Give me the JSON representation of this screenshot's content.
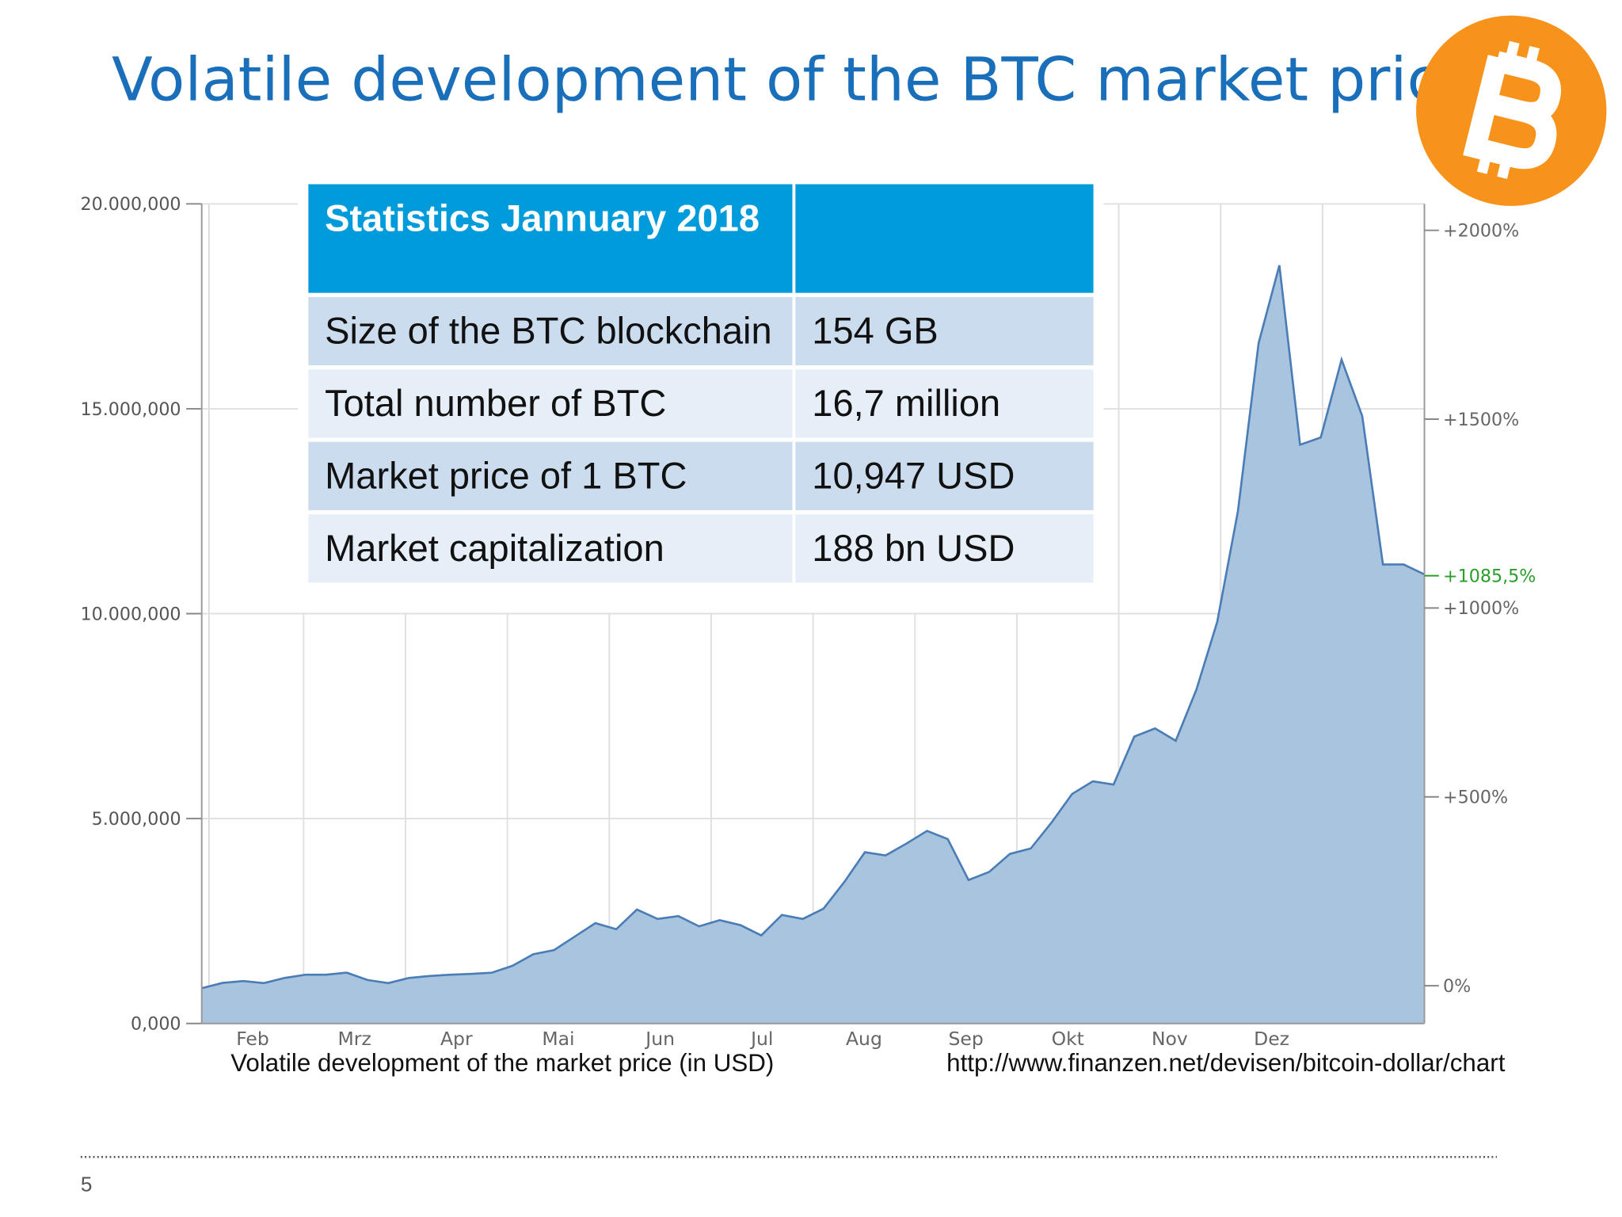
{
  "chart_data": {
    "type": "area",
    "title": "Volatile development of the BTC market price",
    "color": "#4a7db5",
    "fill": "#a9c4df",
    "grid": true,
    "x_labels": [
      "Feb",
      "Mrz",
      "Apr",
      "Mai",
      "Jun",
      "Jul",
      "Aug",
      "Sep",
      "Okt",
      "Nov",
      "Dez"
    ],
    "series": [
      {
        "color": "#4a7db5",
        "values": [
          860,
          990,
          1035,
          985,
          1110,
          1190,
          1190,
          1240,
          1060,
          985,
          1110,
          1160,
          1190,
          1210,
          1240,
          1410,
          1690,
          1790,
          2120,
          2450,
          2300,
          2780,
          2550,
          2620,
          2370,
          2520,
          2400,
          2150,
          2650,
          2550,
          2800,
          3450,
          4180,
          4100,
          4390,
          4700,
          4500,
          3500,
          3700,
          4140,
          4270,
          4900,
          5600,
          5910,
          5830,
          7000,
          7200,
          6900,
          8150,
          9800,
          12500,
          16600,
          18500,
          14120,
          14300,
          16200,
          14820,
          11200,
          11200,
          10960
        ]
      }
    ],
    "ylim": [
      0,
      20000
    ],
    "yticks": [
      {
        "value": 0,
        "label": "0,000"
      },
      {
        "value": 5000,
        "label": "5.000,000"
      },
      {
        "value": 10000,
        "label": "10.000,000"
      },
      {
        "value": 15000,
        "label": "15.000,000"
      },
      {
        "value": 20000,
        "label": "20.000,000"
      }
    ],
    "y2lim": [
      -100,
      2070
    ],
    "y2ticks": [
      {
        "value": 0,
        "label": "0%"
      },
      {
        "value": 500,
        "label": "+500%"
      },
      {
        "value": 1000,
        "label": "+1000%"
      },
      {
        "value": 1500,
        "label": "+1500%"
      },
      {
        "value": 2000,
        "label": "+2000%"
      }
    ],
    "annotation": {
      "value": 1085.5,
      "label": "+1085,5%",
      "color": "#2a9d2a"
    },
    "caption": "Volatile development of the market price (in USD)",
    "source": "http://www.finanzen.net/devisen/bitcoin-dollar/chart"
  },
  "table": {
    "header": [
      "Statistics Jannuary 2018"
    ],
    "rows": [
      [
        "Size of the BTC blockchain",
        "154 GB"
      ],
      [
        "Total number of BTC",
        "16,7 million"
      ],
      [
        "Market price of 1 BTC",
        "10,947 USD"
      ],
      [
        "Market capitalization",
        "188 bn USD"
      ]
    ]
  },
  "page_number": "5"
}
